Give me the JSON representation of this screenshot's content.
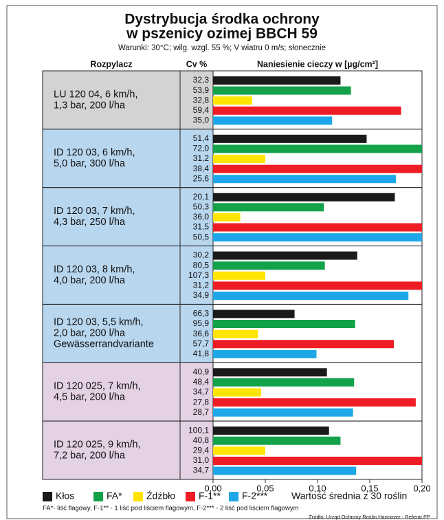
{
  "chart_data": {
    "type": "bar",
    "orientation": "horizontal",
    "title": [
      "Dystrybucja środka ochrony",
      "w pszenicy ozimej BBCH 59"
    ],
    "subtitle": "Warunki: 30°C; wilg. wzgl. 55 %; V wiatru 0 m/s; słonecznie",
    "column_headers": [
      "Rozpylacz",
      "Cv %",
      "Naniesienie cieczy w  [µg/cm²]"
    ],
    "categories": [
      [
        "LU 120 04, 6 km/h,",
        "1,3 bar, 200 l/ha"
      ],
      [
        "ID 120 03, 6 km/h,",
        "5,0 bar, 300 l/ha"
      ],
      [
        "ID 120 03, 7 km/h,",
        "4,3 bar, 250 l/ha"
      ],
      [
        "ID 120 03, 8 km/h,",
        "4,0 bar, 200 l/ha"
      ],
      [
        "ID 120 03, 5,5 km/h,",
        "2,0 bar, 200 l/ha",
        "Gewässerrandvariante"
      ],
      [
        "ID 120 025, 7 km/h,",
        "4,5 bar, 200 l/ha"
      ],
      [
        "ID 120 025, 9 km/h,",
        "7,2 bar, 200 l/ha"
      ]
    ],
    "row_colors": [
      "#d3d3d3",
      "#b8d6ee",
      "#b8d6ee",
      "#b8d6ee",
      "#b8d6ee",
      "#e4d1e4",
      "#e4d1e4"
    ],
    "cv_labels": [
      [
        "32,3",
        "53,9",
        "32,8",
        "59,4",
        "35,0"
      ],
      [
        "51,4",
        "72,0",
        "31,2",
        "38,4",
        "25,6"
      ],
      [
        "20,1",
        "50,3",
        "36,0",
        "31,5",
        "50,5"
      ],
      [
        "30,2",
        "80,5",
        "107,3",
        "31,2",
        "34,9"
      ],
      [
        "66,3",
        "95,9",
        "36,6",
        "57,7",
        "41,8"
      ],
      [
        "40,9",
        "48,4",
        "34,7",
        "27,8",
        "28,7"
      ],
      [
        "100,1",
        "40,8",
        "29,4",
        "31,0",
        "34,7"
      ]
    ],
    "series": [
      {
        "name": "Kłos",
        "color": "#1a1a1a",
        "values": [
          0.122,
          0.147,
          0.174,
          0.138,
          0.078,
          0.109,
          0.111
        ]
      },
      {
        "name": "FA*",
        "color": "#13a24a",
        "values": [
          0.132,
          0.2,
          0.106,
          0.107,
          0.136,
          0.135,
          0.122
        ]
      },
      {
        "name": "Źdźbło",
        "color": "#ffe500",
        "values": [
          0.0375,
          0.05,
          0.026,
          0.05,
          0.043,
          0.046,
          0.05
        ]
      },
      {
        "name": "F-1**",
        "color": "#ee1c25",
        "values": [
          0.18,
          0.2,
          0.2,
          0.2,
          0.173,
          0.194,
          0.2
        ]
      },
      {
        "name": "F-2***",
        "color": "#1ea7e8",
        "values": [
          0.114,
          0.175,
          0.2,
          0.187,
          0.099,
          0.134,
          0.137
        ]
      }
    ],
    "xlim": [
      0,
      0.2
    ],
    "xticks": [
      {
        "value": 0,
        "label": "0,00"
      },
      {
        "value": 0.05,
        "label": "0,05"
      },
      {
        "value": 0.1,
        "label": "0,10"
      },
      {
        "value": 0.15,
        "label": "0,15"
      },
      {
        "value": 0.2,
        "label": "0,20"
      }
    ],
    "legend_note": "Wartość średnia z 30 roślin",
    "footnote": "FA*- liść flagowy,  F-1** - 1 liść pod liściem flagowym,  F-2*** - 2 liść pod liściem flagowym",
    "source": "Źródło: Urząd Ochrony Roślin Hannover - Referat PP"
  }
}
